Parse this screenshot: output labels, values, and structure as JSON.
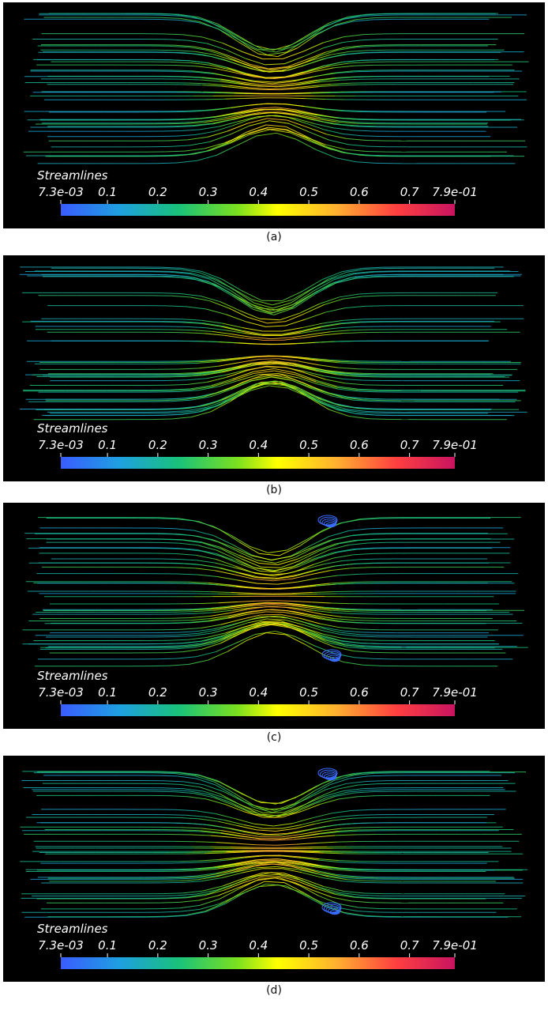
{
  "panels": [
    {
      "caption": "(a)",
      "legend": {
        "title": "Streamlines",
        "range": [
          0.0073,
          0.79
        ],
        "ticks": [
          {
            "value": 0.0073,
            "label": "7.3e-03"
          },
          0.1,
          0.2,
          0.3,
          0.4,
          0.5,
          0.6,
          0.7,
          {
            "value": 0.79,
            "label": "7.9e-01"
          }
        ]
      }
    },
    {
      "caption": "(b)",
      "legend": {
        "title": "Streamlines",
        "range": [
          0.0073,
          0.79
        ],
        "ticks": [
          {
            "value": 0.0073,
            "label": "7.3e-03"
          },
          0.1,
          0.2,
          0.3,
          0.4,
          0.5,
          0.6,
          0.7,
          {
            "value": 0.79,
            "label": "7.9e-01"
          }
        ]
      }
    },
    {
      "caption": "(c)",
      "legend": {
        "title": "Streamlines",
        "range": [
          0.0073,
          0.79
        ],
        "ticks": [
          {
            "value": 0.0073,
            "label": "7.3e-03"
          },
          0.1,
          0.2,
          0.3,
          0.4,
          0.5,
          0.6,
          0.7,
          {
            "value": 0.79,
            "label": "7.9e-01"
          }
        ]
      }
    },
    {
      "caption": "(d)",
      "legend": {
        "title": "Streamlines",
        "range": [
          0.0073,
          0.79
        ],
        "ticks": [
          {
            "value": 0.0073,
            "label": "7.3e-03"
          },
          0.1,
          0.2,
          0.3,
          0.4,
          0.5,
          0.6,
          0.7,
          {
            "value": 0.79,
            "label": "7.9e-01"
          }
        ]
      }
    }
  ]
}
